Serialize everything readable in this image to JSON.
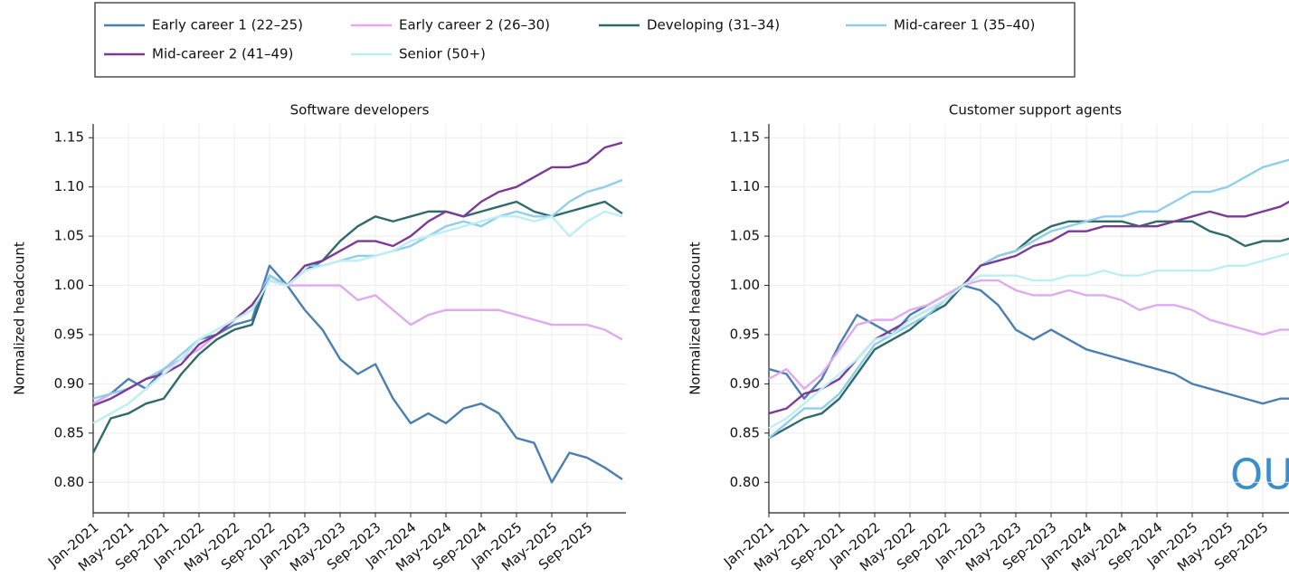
{
  "legend": {
    "position": "top",
    "items": [
      {
        "name": "Early career 1 (22–25)",
        "color": "#4a7fb0"
      },
      {
        "name": "Early career 2 (26–30)",
        "color": "#e0aaf0"
      },
      {
        "name": "Developing (31–34)",
        "color": "#2f6b6a"
      },
      {
        "name": "Mid-career 1 (35–40)",
        "color": "#8fcfeb"
      },
      {
        "name": "Mid-career 2 (41–49)",
        "color": "#7b3a96"
      },
      {
        "name": "Senior (50+)",
        "color": "#bdeff2"
      }
    ]
  },
  "watermark": "OU",
  "chart_data": [
    {
      "type": "line",
      "title": "Software developers",
      "ylabel": "Normalized headcount",
      "grid": true,
      "categories": [
        "Jan-2021",
        null,
        "May-2021",
        null,
        "Sep-2021",
        null,
        "Jan-2022",
        null,
        "May-2022",
        null,
        "Sep-2022",
        null,
        "Jan-2023",
        null,
        "May-2023",
        null,
        "Sep-2023",
        null,
        "Jan-2024",
        null,
        "May-2024",
        null,
        "Sep-2024",
        null,
        "Jan-2025",
        null,
        "May-2025",
        null,
        "Sep-2025",
        null,
        null
      ],
      "ylim": [
        0.769,
        1.164
      ],
      "yticks": [
        {
          "value": 0.8,
          "label": "0.80"
        },
        0.85,
        {
          "value": 0.9,
          "label": "0.90"
        },
        0.95,
        {
          "value": 1.0,
          "label": "1.00"
        },
        1.05,
        {
          "value": 1.1,
          "label": "1.10"
        },
        1.15
      ],
      "series": [
        {
          "values": [
            0.88,
            0.89,
            0.905,
            0.895,
            0.915,
            0.925,
            0.945,
            0.95,
            0.96,
            0.965,
            1.02,
            1.0,
            0.975,
            0.955,
            0.925,
            0.91,
            0.92,
            0.885,
            0.86,
            0.87,
            0.86,
            0.875,
            0.88,
            0.87,
            0.845,
            0.84,
            0.8,
            0.83,
            0.825,
            0.815,
            0.803
          ]
        },
        {
          "values": [
            0.88,
            0.89,
            0.895,
            0.905,
            0.915,
            0.925,
            0.935,
            0.95,
            0.965,
            0.975,
            1.005,
            1.0,
            1.0,
            1.0,
            1.0,
            0.985,
            0.99,
            0.975,
            0.96,
            0.97,
            0.975,
            0.975,
            0.975,
            0.975,
            0.97,
            0.965,
            0.96,
            0.96,
            0.96,
            0.955,
            0.945
          ]
        },
        {
          "values": [
            0.83,
            0.865,
            0.87,
            0.88,
            0.885,
            0.91,
            0.93,
            0.945,
            0.955,
            0.96,
            1.01,
            1.0,
            1.015,
            1.025,
            1.045,
            1.06,
            1.07,
            1.065,
            1.07,
            1.075,
            1.075,
            1.07,
            1.075,
            1.08,
            1.085,
            1.075,
            1.07,
            1.075,
            1.08,
            1.085,
            1.073
          ]
        },
        {
          "values": [
            0.885,
            0.89,
            0.895,
            0.905,
            0.915,
            0.93,
            0.945,
            0.955,
            0.965,
            0.975,
            1.01,
            1.0,
            1.02,
            1.02,
            1.025,
            1.03,
            1.03,
            1.035,
            1.04,
            1.05,
            1.06,
            1.065,
            1.06,
            1.07,
            1.075,
            1.07,
            1.07,
            1.085,
            1.095,
            1.1,
            1.107
          ]
        },
        {
          "values": [
            0.878,
            0.885,
            0.895,
            0.905,
            0.91,
            0.92,
            0.94,
            0.95,
            0.965,
            0.98,
            1.005,
            1.0,
            1.02,
            1.025,
            1.035,
            1.045,
            1.045,
            1.04,
            1.05,
            1.065,
            1.075,
            1.07,
            1.085,
            1.095,
            1.1,
            1.11,
            1.12,
            1.12,
            1.125,
            1.14,
            1.145
          ]
        },
        {
          "values": [
            0.86,
            0.87,
            0.88,
            0.895,
            0.91,
            0.925,
            0.945,
            0.955,
            0.965,
            0.975,
            1.005,
            1.0,
            1.015,
            1.02,
            1.025,
            1.025,
            1.03,
            1.035,
            1.045,
            1.05,
            1.055,
            1.06,
            1.065,
            1.07,
            1.07,
            1.065,
            1.07,
            1.05,
            1.065,
            1.075,
            1.07
          ]
        }
      ]
    },
    {
      "type": "line",
      "title": "Customer support agents",
      "ylabel": "Normalized headcount",
      "grid": true,
      "categories": [
        "Jan-2021",
        null,
        "May-2021",
        null,
        "Sep-2021",
        null,
        "Jan-2022",
        null,
        "May-2022",
        null,
        "Sep-2022",
        null,
        "Jan-2023",
        null,
        "May-2023",
        null,
        "Sep-2023",
        null,
        "Jan-2024",
        null,
        "May-2024",
        null,
        "Sep-2024",
        null,
        "Jan-2025",
        null,
        "May-2025",
        null,
        "Sep-2025",
        null,
        null
      ],
      "ylim": [
        0.769,
        1.164
      ],
      "yticks": [
        {
          "value": 0.8,
          "label": "0.80"
        },
        0.85,
        {
          "value": 0.9,
          "label": "0.90"
        },
        0.95,
        {
          "value": 1.0,
          "label": "1.00"
        },
        1.05,
        {
          "value": 1.1,
          "label": "1.10"
        },
        1.15
      ],
      "series": [
        {
          "values": [
            0.915,
            0.91,
            0.885,
            0.905,
            0.94,
            0.97,
            0.96,
            0.95,
            0.97,
            0.98,
            0.99,
            1.0,
            0.995,
            0.98,
            0.955,
            0.945,
            0.955,
            0.945,
            0.935,
            0.93,
            0.925,
            0.92,
            0.915,
            0.91,
            0.9,
            0.895,
            0.89,
            0.885,
            0.88,
            0.885,
            0.885
          ]
        },
        {
          "values": [
            0.905,
            0.915,
            0.895,
            0.91,
            0.935,
            0.96,
            0.965,
            0.965,
            0.975,
            0.98,
            0.99,
            1.0,
            1.005,
            1.005,
            0.995,
            0.99,
            0.99,
            0.995,
            0.99,
            0.99,
            0.985,
            0.975,
            0.98,
            0.98,
            0.975,
            0.965,
            0.96,
            0.955,
            0.95,
            0.955,
            0.955
          ]
        },
        {
          "values": [
            0.845,
            0.855,
            0.865,
            0.87,
            0.885,
            0.91,
            0.935,
            0.945,
            0.955,
            0.97,
            0.98,
            1.0,
            1.02,
            1.03,
            1.035,
            1.05,
            1.06,
            1.065,
            1.065,
            1.065,
            1.065,
            1.06,
            1.065,
            1.065,
            1.065,
            1.055,
            1.05,
            1.04,
            1.045,
            1.045,
            1.05
          ]
        },
        {
          "values": [
            0.845,
            0.86,
            0.875,
            0.875,
            0.89,
            0.915,
            0.94,
            0.95,
            0.96,
            0.97,
            0.985,
            1.0,
            1.02,
            1.03,
            1.035,
            1.045,
            1.055,
            1.06,
            1.065,
            1.07,
            1.07,
            1.075,
            1.075,
            1.085,
            1.095,
            1.095,
            1.1,
            1.11,
            1.12,
            1.125,
            1.13
          ]
        },
        {
          "values": [
            0.87,
            0.875,
            0.89,
            0.895,
            0.905,
            0.925,
            0.945,
            0.955,
            0.965,
            0.975,
            0.985,
            1.0,
            1.02,
            1.025,
            1.03,
            1.04,
            1.045,
            1.055,
            1.055,
            1.06,
            1.06,
            1.06,
            1.06,
            1.065,
            1.07,
            1.075,
            1.07,
            1.07,
            1.075,
            1.08,
            1.09
          ]
        },
        {
          "values": [
            0.855,
            0.865,
            0.88,
            0.895,
            0.91,
            0.925,
            0.945,
            0.95,
            0.965,
            0.975,
            0.985,
            1.0,
            1.01,
            1.01,
            1.01,
            1.005,
            1.005,
            1.01,
            1.01,
            1.015,
            1.01,
            1.01,
            1.015,
            1.015,
            1.015,
            1.015,
            1.02,
            1.02,
            1.025,
            1.03,
            1.035
          ]
        }
      ]
    }
  ]
}
